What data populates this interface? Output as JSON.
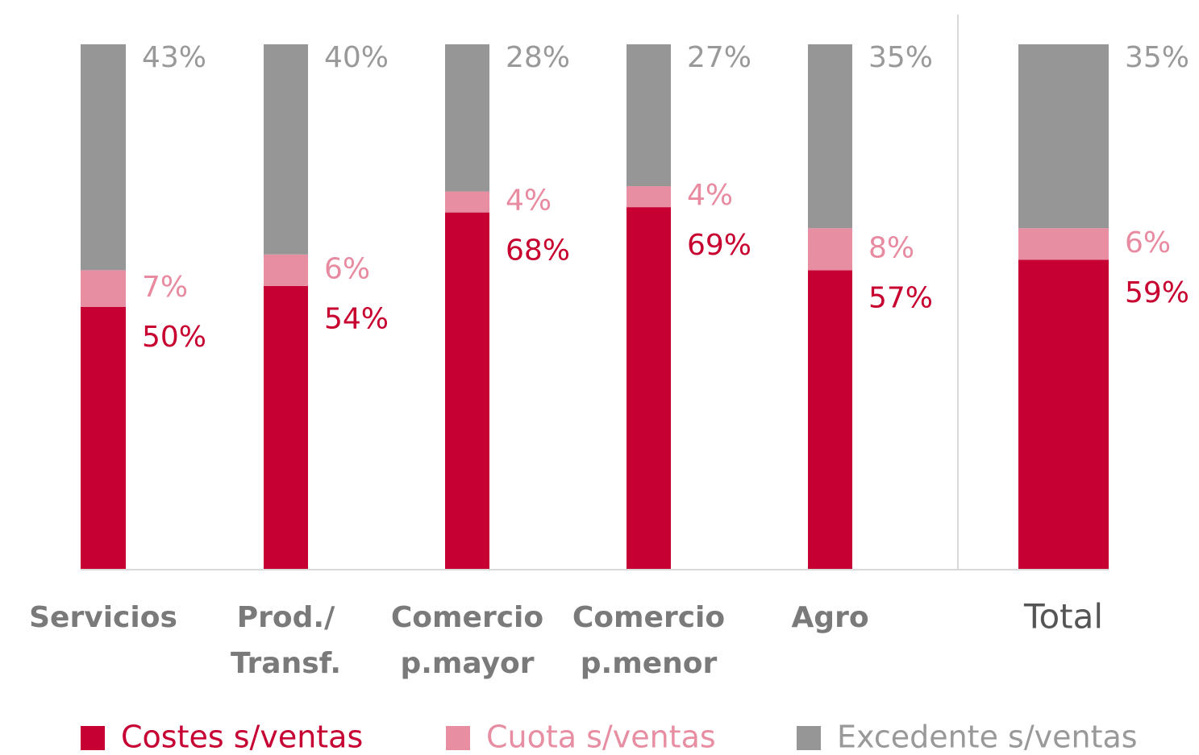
{
  "chart_data": {
    "type": "stacked_bar",
    "categories": [
      [
        "Servicios"
      ],
      [
        "Prod./",
        "Transf."
      ],
      [
        "Comercio",
        "p.mayor"
      ],
      [
        "Comercio",
        "p.menor"
      ],
      [
        "Agro"
      ],
      [
        "Total"
      ]
    ],
    "ylim": [
      0,
      100
    ],
    "series": [
      {
        "name": "Costes s/ventas",
        "color": "#c60032",
        "values": [
          50,
          54,
          68,
          69,
          57,
          59
        ],
        "value_labels": [
          "50%",
          "54%",
          "68%",
          "69%",
          "57%",
          "59%"
        ]
      },
      {
        "name": "Cuota s/ventas",
        "color": "#e78ea3",
        "values": [
          7,
          6,
          4,
          4,
          8,
          6
        ],
        "value_labels": [
          "7%",
          "6%",
          "4%",
          "4%",
          "8%",
          "6%"
        ]
      },
      {
        "name": "Excedente s/ventas",
        "color": "#969696",
        "values": [
          43,
          40,
          28,
          27,
          35,
          35
        ],
        "value_labels": [
          "43%",
          "40%",
          "28%",
          "27%",
          "35%",
          "35%"
        ]
      }
    ]
  }
}
